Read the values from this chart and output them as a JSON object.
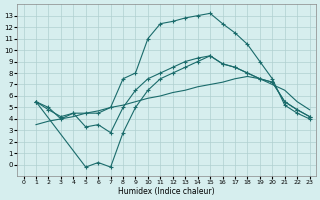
{
  "xlabel": "Humidex (Indice chaleur)",
  "background_color": "#d6eeee",
  "grid_color": "#b0d0d0",
  "line_color": "#1a6b6b",
  "line1_x": [
    1,
    2,
    3,
    4,
    5,
    6,
    7,
    8,
    9,
    10,
    11,
    12,
    13,
    14,
    15,
    16,
    17,
    18,
    19,
    20,
    21,
    22,
    23
  ],
  "line1_y": [
    5.5,
    5.0,
    4.0,
    4.5,
    4.5,
    4.5,
    5.0,
    7.5,
    8.0,
    11.0,
    12.3,
    12.5,
    12.8,
    13.0,
    13.2,
    12.3,
    11.5,
    10.5,
    9.0,
    7.5,
    5.2,
    4.5,
    4.0
  ],
  "line2_x": [
    1,
    2,
    3,
    4,
    5,
    6,
    7,
    8,
    9,
    10,
    11,
    12,
    13,
    14,
    15,
    16,
    17,
    18,
    19,
    20,
    21,
    22,
    23
  ],
  "line2_y": [
    5.5,
    4.8,
    4.2,
    4.5,
    3.3,
    3.5,
    2.8,
    5.0,
    6.5,
    7.5,
    8.0,
    8.5,
    9.0,
    9.3,
    9.5,
    8.8,
    8.5,
    8.0,
    7.5,
    7.2,
    5.5,
    4.8,
    4.2
  ],
  "line3_x": [
    1,
    5,
    6,
    7,
    8,
    9,
    10,
    11,
    12,
    13,
    14,
    15,
    16,
    17,
    18,
    19,
    20,
    21,
    22,
    23
  ],
  "line3_y": [
    5.5,
    -0.2,
    0.2,
    -0.2,
    2.8,
    5.0,
    6.5,
    7.5,
    8.0,
    8.5,
    9.0,
    9.5,
    8.8,
    8.5,
    8.0,
    7.5,
    7.2,
    5.5,
    4.8,
    4.2
  ],
  "line4_x": [
    1,
    2,
    3,
    4,
    5,
    6,
    7,
    8,
    9,
    10,
    11,
    12,
    13,
    14,
    15,
    16,
    17,
    18,
    19,
    20,
    21,
    22,
    23
  ],
  "line4_y": [
    3.5,
    3.8,
    4.0,
    4.2,
    4.5,
    4.7,
    5.0,
    5.2,
    5.5,
    5.8,
    6.0,
    6.3,
    6.5,
    6.8,
    7.0,
    7.2,
    7.5,
    7.7,
    7.5,
    7.0,
    6.5,
    5.5,
    4.8
  ],
  "xlim": [
    -0.5,
    23.5
  ],
  "ylim": [
    -1,
    14
  ],
  "xticks": [
    0,
    1,
    2,
    3,
    4,
    5,
    6,
    7,
    8,
    9,
    10,
    11,
    12,
    13,
    14,
    15,
    16,
    17,
    18,
    19,
    20,
    21,
    22,
    23
  ],
  "yticks": [
    0,
    1,
    2,
    3,
    4,
    5,
    6,
    7,
    8,
    9,
    10,
    11,
    12,
    13
  ]
}
